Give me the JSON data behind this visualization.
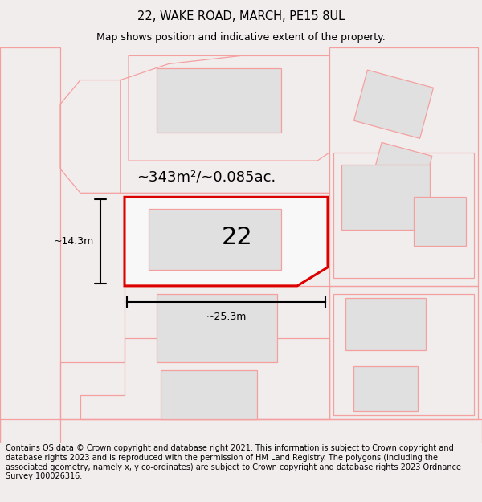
{
  "title": "22, WAKE ROAD, MARCH, PE15 8UL",
  "subtitle": "Map shows position and indicative extent of the property.",
  "footer": "Contains OS data © Crown copyright and database right 2021. This information is subject to Crown copyright and database rights 2023 and is reproduced with the permission of HM Land Registry. The polygons (including the associated geometry, namely x, y co-ordinates) are subject to Crown copyright and database rights 2023 Ordnance Survey 100026316.",
  "bg_color": "#f2eded",
  "map_bg": "#ffffff",
  "neighbor_fill": "#e0e0e0",
  "neighbor_stroke": "#f5a0a0",
  "main_fill": "#f8f8f8",
  "main_stroke": "#dd0000",
  "area_text": "~343m²/~0.085ac.",
  "label_22": "22",
  "dim_width": "~25.3m",
  "dim_height": "~14.3m",
  "title_fontsize": 10.5,
  "subtitle_fontsize": 9,
  "footer_fontsize": 7,
  "label_fontsize": 22,
  "area_fontsize": 13
}
